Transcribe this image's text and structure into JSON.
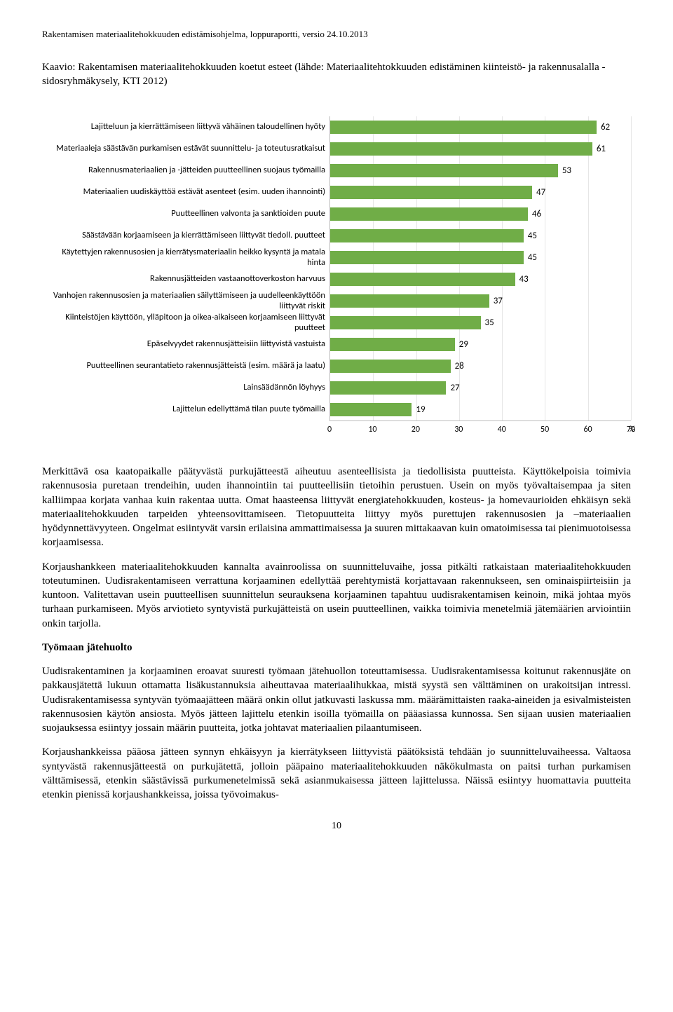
{
  "doc_header": "Rakentamisen materiaalitehokkuuden edistämisohjelma, loppuraportti, versio 24.10.2013",
  "chart_title": "Kaavio: Rakentamisen materiaalitehokkuuden koetut esteet (lähde: Materiaalitehtokkuuden edistäminen kiinteistö- ja rakennusalalla - sidosryhmäkysely, KTI 2012)",
  "chart": {
    "type": "bar-horizontal",
    "xmax": 70,
    "xtick_step": 10,
    "xunit": "%",
    "bar_color": "#70ad47",
    "grid_color": "#e6e6e6",
    "axis_color": "#bbbbbb",
    "label_fontsize": 12.5,
    "value_fontsize": 13,
    "items": [
      {
        "label": "Lajitteluun ja kierrättämiseen liittyvä vähäinen taloudellinen hyöty",
        "value": 62
      },
      {
        "label": "Materiaaleja säästävän purkamisen estävät suunnittelu- ja toteutusratkaisut",
        "value": 61
      },
      {
        "label": "Rakennusmateriaalien ja -jätteiden puutteellinen suojaus työmailla",
        "value": 53
      },
      {
        "label": "Materiaalien uudiskäyttöä estävät asenteet (esim. uuden ihannointi)",
        "value": 47
      },
      {
        "label": "Puutteellinen valvonta ja sanktioiden puute",
        "value": 46
      },
      {
        "label": "Säästävään korjaamiseen ja kierrättämiseen liittyvät tiedoll. puutteet",
        "value": 45
      },
      {
        "label": "Käytettyjen rakennusosien ja kierrätysmateriaalin heikko kysyntä ja matala hinta",
        "value": 45
      },
      {
        "label": "Rakennusjätteiden vastaanottoverkoston harvuus",
        "value": 43
      },
      {
        "label": "Vanhojen rakennusosien ja materiaalien säilyttämiseen ja uudelleenkäyttöön liittyvät riskit",
        "value": 37
      },
      {
        "label": "Kiinteistöjen käyttöön, ylläpitoon ja oikea-aikaiseen korjaamiseen liittyvät puutteet",
        "value": 35
      },
      {
        "label": "Epäselvyydet rakennusjätteisiin liittyvistä vastuista",
        "value": 29
      },
      {
        "label": "Puutteellinen seurantatieto rakennusjätteistä (esim. määrä ja laatu)",
        "value": 28
      },
      {
        "label": "Lainsäädännön löyhyys",
        "value": 27
      },
      {
        "label": "Lajittelun edellyttämä tilan puute työmailla",
        "value": 19
      }
    ]
  },
  "paragraphs": [
    "Merkittävä osa kaatopaikalle päätyvästä purkujätteestä aiheutuu asenteellisista ja tiedollisista puutteista. Käyttökelpoisia toimivia rakennusosia puretaan trendeihin, uuden ihannointiin tai puutteellisiin tietoihin perustuen. Usein on myös työvaltaisempaa ja siten kalliimpaa korjata vanhaa kuin rakentaa uutta. Omat haasteensa liittyvät energiatehokkuuden, kosteus- ja homevaurioiden ehkäisyn sekä materiaalitehokkuuden tarpeiden yhteensovittamiseen. Tietopuutteita liittyy myös purettujen rakennusosien ja –materiaalien hyödynnettävyyteen. Ongelmat esiintyvät varsin erilaisina ammattimaisessa ja suuren mittakaavan kuin omatoimisessa tai pienimuotoisessa korjaamisessa.",
    "Korjaushankkeen materiaalitehokkuuden kannalta avainroolissa on suunnitteluvaihe, jossa pitkälti ratkaistaan materiaalitehokkuuden toteutuminen. Uudisrakentamiseen verrattuna korjaaminen edellyttää perehtymistä korjattavaan rakennukseen, sen ominaispiirteisiin ja kuntoon. Valitettavan usein puutteellisen suunnittelun seurauksena korjaaminen tapahtuu uudisrakentamisen keinoin, mikä johtaa myös turhaan purkamiseen. Myös arviotieto syntyvistä purkujätteistä on usein puutteellinen, vaikka toimivia menetelmiä jätemäärien arviointiin onkin tarjolla."
  ],
  "subheading": "Työmaan jätehuolto",
  "paragraphs2": [
    "Uudisrakentaminen ja korjaaminen eroavat suuresti työmaan jätehuollon toteuttamisessa. Uudisrakentamisessa koitunut rakennusjäte on pakkausjätettä lukuun ottamatta lisäkustannuksia aiheuttavaa materiaalihukkaa, mistä syystä sen välttäminen on urakoitsijan intressi. Uudisrakentamisessa syntyvän työmaajätteen määrä onkin ollut jatkuvasti laskussa mm. määrämittaisten raaka-aineiden ja esivalmisteisten rakennusosien käytön ansiosta. Myös jätteen lajittelu etenkin isoilla työmailla on pääasiassa kunnossa. Sen sijaan uusien materiaalien suojauksessa esiintyy jossain määrin puutteita, jotka johtavat materiaalien pilaantumiseen.",
    "Korjaushankkeissa pääosa jätteen synnyn ehkäisyyn ja kierrätykseen liittyvistä päätöksistä tehdään jo suunnitteluvaiheessa. Valtaosa syntyvästä rakennusjätteestä on purkujätettä, jolloin pääpaino materiaalitehokkuuden näkökulmasta on paitsi turhan purkamisen välttämisessä, etenkin säästävissä purkumenetelmissä sekä asianmukaisessa jätteen lajittelussa. Näissä esiintyy huomattavia puutteita etenkin pienissä korjaushankkeissa, joissa työvoimakus-"
  ],
  "page_number": "10"
}
